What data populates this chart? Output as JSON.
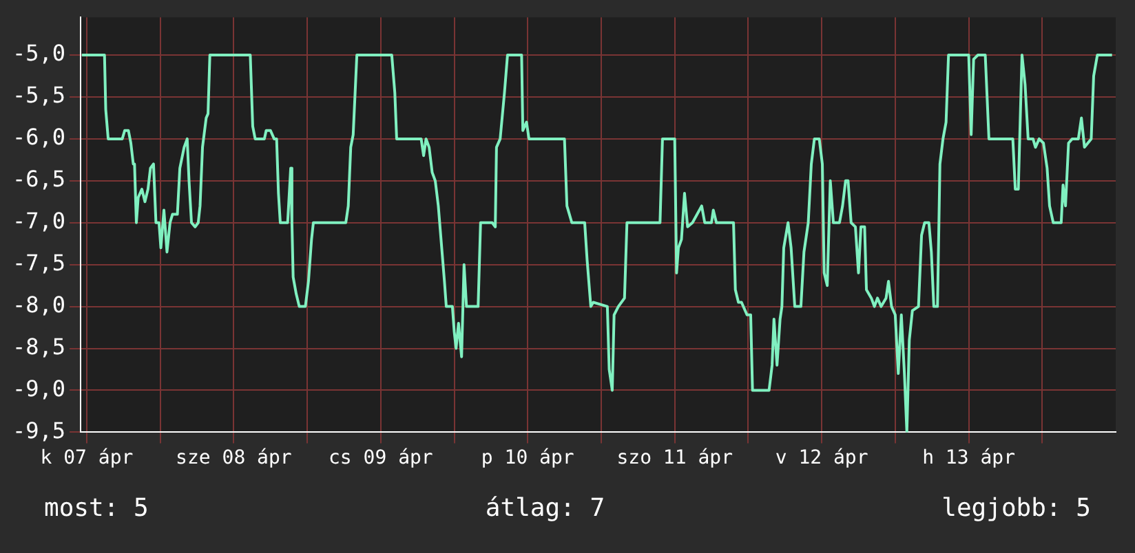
{
  "chart_data": {
    "type": "line",
    "annotations": [
      "most: 5",
      "átlag: 7",
      "legjobb: 5"
    ],
    "xlim": [
      "--04-07T11:00",
      "--04-14T12:00"
    ],
    "xticks": [
      {
        "value": "--04-07T12:00",
        "label": "k 07 ápr"
      },
      {
        "value": "--04-08T00:00",
        "label": null
      },
      {
        "value": "--04-08T12:00",
        "label": "sze 08 ápr"
      },
      {
        "value": "--04-09T00:00",
        "label": null
      },
      {
        "value": "--04-09T12:00",
        "label": "cs 09 ápr"
      },
      {
        "value": "--04-10T00:00",
        "label": null
      },
      {
        "value": "--04-10T12:00",
        "label": "p 10 ápr"
      },
      {
        "value": "--04-11T00:00",
        "label": null
      },
      {
        "value": "--04-11T12:00",
        "label": "szo 11 ápr"
      },
      {
        "value": "--04-12T00:00",
        "label": null
      },
      {
        "value": "--04-12T12:00",
        "label": "v 12 ápr"
      },
      {
        "value": "--04-13T00:00",
        "label": null
      },
      {
        "value": "--04-13T12:00",
        "label": "h 13 ápr"
      },
      {
        "value": "--04-14T00:00",
        "label": null
      }
    ],
    "ylim": [
      -9.5,
      -4.55
    ],
    "yticks": [
      {
        "value": -9.5,
        "label": "-9,5"
      },
      {
        "value": -9,
        "label": "-9,0"
      },
      {
        "value": -8.5,
        "label": "-8,5"
      },
      {
        "value": -8,
        "label": "-8,0"
      },
      {
        "value": -7.5,
        "label": "-7,5"
      },
      {
        "value": -7,
        "label": "-7,0"
      },
      {
        "value": -6.5,
        "label": "-6,5"
      },
      {
        "value": -6,
        "label": "-6,0"
      },
      {
        "value": -5.5,
        "label": "-5,5"
      },
      {
        "value": -5,
        "label": "-5,0"
      }
    ],
    "grid": true,
    "marker": "none",
    "line_style": "solid",
    "series": [
      {
        "color": "#80f0c0",
        "x": [
          "--04-07T11:12",
          "--04-07T14:54",
          "--04-07T15:06",
          "--04-07T15:30",
          "--04-07T17:48",
          "--04-07T18:12",
          "--04-07T18:48",
          "--04-07T19:12",
          "--04-07T19:36",
          "--04-07T19:48",
          "--04-07T20:06",
          "--04-07T20:24",
          "--04-07T21:00",
          "--04-07T21:30",
          "--04-07T22:00",
          "--04-07T22:24",
          "--04-07T22:54",
          "--04-07T23:18",
          "--04-07T23:48",
          "--04-08T00:06",
          "--04-08T00:36",
          "--04-08T01:06",
          "--04-08T01:36",
          "--04-08T02:00",
          "--04-08T02:48",
          "--04-08T03:12",
          "--04-08T03:54",
          "--04-08T04:24",
          "--04-08T04:42",
          "--04-08T05:06",
          "--04-08T05:42",
          "--04-08T06:12",
          "--04-08T06:30",
          "--04-08T06:54",
          "--04-08T07:30",
          "--04-08T07:48",
          "--04-08T08:06",
          "--04-08T14:42",
          "--04-08T15:06",
          "--04-08T15:30",
          "--04-08T17:00",
          "--04-08T17:18",
          "--04-08T18:00",
          "--04-08T18:36",
          "--04-08T19:00",
          "--04-08T19:18",
          "--04-08T19:36",
          "--04-08T20:48",
          "--04-08T21:18",
          "--04-08T21:30",
          "--04-08T21:42",
          "--04-08T22:12",
          "--04-08T22:42",
          "--04-08T23:42",
          "--04-09T00:12",
          "--04-09T00:42",
          "--04-09T01:00",
          "--04-09T06:18",
          "--04-09T06:42",
          "--04-09T07:06",
          "--04-09T07:30",
          "--04-09T08:06",
          "--04-09T13:48",
          "--04-09T14:18",
          "--04-09T14:36",
          "--04-09T18:36",
          "--04-09T19:00",
          "--04-09T19:24",
          "--04-09T19:54",
          "--04-09T20:24",
          "--04-09T20:54",
          "--04-09T21:24",
          "--04-09T22:24",
          "--04-09T22:42",
          "--04-09T23:42",
          "--04-10T00:00",
          "--04-10T00:18",
          "--04-10T00:42",
          "--04-10T01:12",
          "--04-10T01:36",
          "--04-10T02:00",
          "--04-10T03:54",
          "--04-10T04:18",
          "--04-10T06:12",
          "--04-10T06:42",
          "--04-10T06:54",
          "--04-10T07:30",
          "--04-10T08:12",
          "--04-10T08:42",
          "--04-10T11:00",
          "--04-10T11:12",
          "--04-10T11:48",
          "--04-10T12:12",
          "--04-10T18:00",
          "--04-10T18:24",
          "--04-10T19:12",
          "--04-10T21:18",
          "--04-10T21:42",
          "--04-10T22:18",
          "--04-10T22:42",
          "--04-11T01:00",
          "--04-11T01:18",
          "--04-11T01:48",
          "--04-11T02:06",
          "--04-11T02:48",
          "--04-11T03:48",
          "--04-11T04:12",
          "--04-11T09:36",
          "--04-11T10:00",
          "--04-11T12:00",
          "--04-11T12:18",
          "--04-11T12:36",
          "--04-11T13:06",
          "--04-11T13:36",
          "--04-11T14:06",
          "--04-11T14:54",
          "--04-11T16:24",
          "--04-11T16:54",
          "--04-11T18:00",
          "--04-11T18:18",
          "--04-11T18:48",
          "--04-11T21:36",
          "--04-11T21:54",
          "--04-11T22:24",
          "--04-11T22:54",
          "--04-11T23:48",
          "--04-12T00:24",
          "--04-12T00:42",
          "--04-12T03:24",
          "--04-12T03:54",
          "--04-12T04:12",
          "--04-12T04:42",
          "--04-12T05:12",
          "--04-12T05:30",
          "--04-12T05:48",
          "--04-12T06:30",
          "--04-12T07:00",
          "--04-12T07:36",
          "--04-12T08:36",
          "--04-12T09:06",
          "--04-12T09:48",
          "--04-12T10:18",
          "--04-12T10:48",
          "--04-12T11:36",
          "--04-12T12:06",
          "--04-12T12:24",
          "--04-12T12:54",
          "--04-12T13:24",
          "--04-12T13:54",
          "--04-12T14:54",
          "--04-12T15:24",
          "--04-12T15:54",
          "--04-12T16:18",
          "--04-12T16:48",
          "--04-12T17:30",
          "--04-12T18:00",
          "--04-12T18:24",
          "--04-12T19:00",
          "--04-12T19:18",
          "--04-12T20:06",
          "--04-12T20:36",
          "--04-12T21:06",
          "--04-12T21:42",
          "--04-12T22:30",
          "--04-12T22:54",
          "--04-12T23:24",
          "--04-13T00:00",
          "--04-13T00:30",
          "--04-13T01:00",
          "--04-13T01:30",
          "--04-13T01:54",
          "--04-13T02:18",
          "--04-13T02:48",
          "--04-13T03:48",
          "--04-13T04:18",
          "--04-13T04:48",
          "--04-13T05:30",
          "--04-13T05:54",
          "--04-13T06:18",
          "--04-13T06:54",
          "--04-13T07:18",
          "--04-13T07:48",
          "--04-13T08:18",
          "--04-13T08:42",
          "--04-13T12:00",
          "--04-13T12:24",
          "--04-13T12:48",
          "--04-13T13:30",
          "--04-13T14:42",
          "--04-13T15:18",
          "--04-13T19:12",
          "--04-13T19:36",
          "--04-13T20:06",
          "--04-13T20:42",
          "--04-13T21:12",
          "--04-13T21:42",
          "--04-13T22:30",
          "--04-13T22:54",
          "--04-13T23:30",
          "--04-14T00:12",
          "--04-14T00:48",
          "--04-14T01:12",
          "--04-14T01:48",
          "--04-14T03:06",
          "--04-14T03:24",
          "--04-14T03:48",
          "--04-14T04:18",
          "--04-14T04:54",
          "--04-14T05:54",
          "--04-14T06:24",
          "--04-14T06:54",
          "--04-14T08:00",
          "--04-14T08:24",
          "--04-14T09:00",
          "--04-14T11:24"
        ],
        "values": [
          -5.0,
          -5.0,
          -5.65,
          -6.0,
          -6.0,
          -5.9,
          -5.9,
          -6.05,
          -6.3,
          -6.3,
          -7.0,
          -6.7,
          -6.6,
          -6.75,
          -6.6,
          -6.35,
          -6.3,
          -7.0,
          -7.0,
          -7.3,
          -6.85,
          -7.35,
          -7.0,
          -6.9,
          -6.9,
          -6.35,
          -6.1,
          -6.0,
          -6.5,
          -7.0,
          -7.05,
          -7.0,
          -6.8,
          -6.1,
          -5.75,
          -5.7,
          -5.0,
          -5.0,
          -5.85,
          -6.0,
          -6.0,
          -5.9,
          -5.9,
          -6.0,
          -6.0,
          -6.65,
          -7.0,
          -7.0,
          -6.35,
          -7.0,
          -7.65,
          -7.85,
          -8.0,
          -8.0,
          -7.7,
          -7.2,
          -7.0,
          -7.0,
          -6.8,
          -6.1,
          -5.95,
          -5.0,
          -5.0,
          -5.45,
          -6.0,
          -6.0,
          -6.2,
          -6.0,
          -6.1,
          -6.4,
          -6.5,
          -6.8,
          -7.7,
          -8.0,
          -8.0,
          -8.3,
          -8.5,
          -8.2,
          -8.6,
          -7.5,
          -8.0,
          -8.0,
          -7.0,
          -7.0,
          -7.05,
          -6.1,
          -6.0,
          -5.45,
          -5.0,
          -5.0,
          -5.9,
          -5.8,
          -6.0,
          -6.0,
          -6.8,
          -7.0,
          -7.0,
          -7.45,
          -8.0,
          -7.95,
          -8.0,
          -8.75,
          -9.0,
          -8.1,
          -8.0,
          -7.9,
          -7.0,
          -7.0,
          -6.0,
          -6.0,
          -7.6,
          -7.3,
          -7.2,
          -6.65,
          -7.05,
          -7.0,
          -6.8,
          -7.0,
          -7.0,
          -6.85,
          -7.0,
          -7.0,
          -7.8,
          -7.95,
          -7.95,
          -8.1,
          -8.1,
          -9.0,
          -9.0,
          -8.7,
          -8.15,
          -8.7,
          -8.15,
          -8.0,
          -7.3,
          -7.0,
          -7.3,
          -8.0,
          -8.0,
          -7.35,
          -7.0,
          -6.3,
          -6.0,
          -6.0,
          -6.3,
          -7.6,
          -7.75,
          -6.5,
          -7.0,
          -7.0,
          -6.8,
          -6.5,
          -6.5,
          -7.0,
          -7.05,
          -7.6,
          -7.05,
          -7.05,
          -7.8,
          -7.9,
          -8.0,
          -7.9,
          -8.0,
          -7.9,
          -7.7,
          -8.0,
          -8.1,
          -8.8,
          -8.1,
          -8.8,
          -9.5,
          -8.4,
          -8.05,
          -8.0,
          -7.15,
          -7.0,
          -7.0,
          -7.35,
          -8.0,
          -8.0,
          -6.3,
          -6.0,
          -5.8,
          -5.0,
          -5.0,
          -5.95,
          -5.05,
          -5.0,
          -5.0,
          -6.0,
          -6.0,
          -6.6,
          -6.6,
          -5.0,
          -5.35,
          -6.0,
          -6.0,
          -6.1,
          -6.0,
          -6.05,
          -6.35,
          -6.8,
          -7.0,
          -7.0,
          -6.55,
          -6.8,
          -6.05,
          -6.0,
          -6.0,
          -5.75,
          -6.1,
          -6.0,
          -5.25,
          -5.0,
          -5.0
        ]
      }
    ]
  }
}
